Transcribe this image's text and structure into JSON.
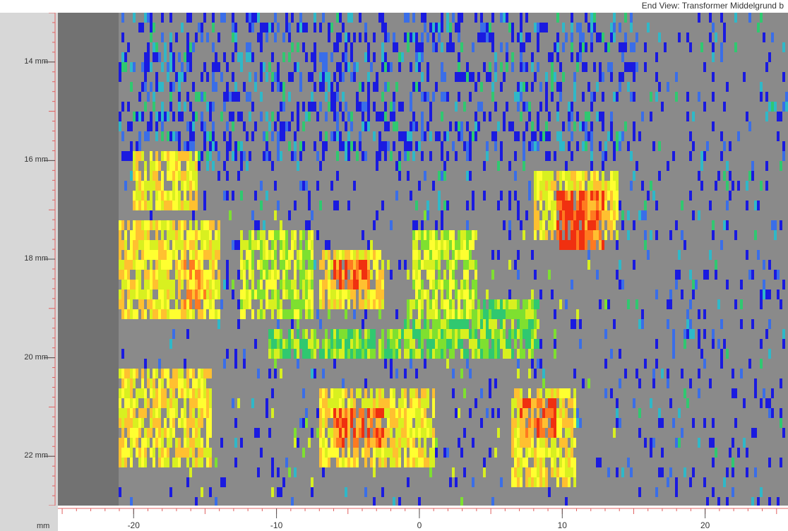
{
  "view": {
    "title": "End View: Transformer Middelgrund b",
    "unit_label": "mm"
  },
  "y_axis": {
    "ticks": [
      "14 mm",
      "16 mm",
      "18 mm",
      "20 mm",
      "22 mm"
    ],
    "tick_values": [
      14,
      16,
      18,
      20,
      22
    ],
    "range": [
      13.0,
      23.0
    ]
  },
  "x_axis": {
    "ticks": [
      "-20",
      "-10",
      "0",
      "10",
      "20"
    ],
    "tick_values": [
      -20,
      -10,
      0,
      10,
      20
    ],
    "range": [
      -25.3,
      25.8
    ]
  },
  "colors": {
    "background": "#8a8a8a",
    "dead_zone": "#727272",
    "scale": [
      "#1a1ae0",
      "#3a6ee8",
      "#2fb8c8",
      "#30c870",
      "#7ee030",
      "#d8f020",
      "#ffff30",
      "#ffc030",
      "#ff7a20",
      "#f03010"
    ],
    "ruler_red": "#e06060"
  },
  "hot_regions": [
    {
      "x": [
        -20.0,
        -15.5
      ],
      "y": [
        15.8,
        17.0
      ],
      "level": 6
    },
    {
      "x": [
        -21.0,
        -14.0
      ],
      "y": [
        17.3,
        19.2
      ],
      "level": 6
    },
    {
      "x": [
        -16.5,
        -15.0
      ],
      "y": [
        18.0,
        19.0
      ],
      "level": 7
    },
    {
      "x": [
        -21.0,
        -14.5
      ],
      "y": [
        20.3,
        22.3
      ],
      "level": 6
    },
    {
      "x": [
        -12.5,
        -7.5
      ],
      "y": [
        17.4,
        19.3
      ],
      "level": 5
    },
    {
      "x": [
        -7.0,
        -2.5
      ],
      "y": [
        17.8,
        19.0
      ],
      "level": 6
    },
    {
      "x": [
        -6.0,
        -3.5
      ],
      "y": [
        18.0,
        18.7
      ],
      "level": 8
    },
    {
      "x": [
        -7.0,
        1.0
      ],
      "y": [
        20.7,
        22.3
      ],
      "level": 6
    },
    {
      "x": [
        -6.0,
        -2.5
      ],
      "y": [
        21.0,
        21.8
      ],
      "level": 8
    },
    {
      "x": [
        -0.5,
        4.0
      ],
      "y": [
        17.4,
        19.2
      ],
      "level": 5
    },
    {
      "x": [
        6.5,
        11.0
      ],
      "y": [
        20.6,
        22.6
      ],
      "level": 6
    },
    {
      "x": [
        7.0,
        9.5
      ],
      "y": [
        20.8,
        21.6
      ],
      "level": 8
    },
    {
      "x": [
        8.0,
        14.0
      ],
      "y": [
        16.2,
        17.6
      ],
      "level": 6
    },
    {
      "x": [
        9.5,
        13.0
      ],
      "y": [
        16.6,
        17.8
      ],
      "level": 8
    },
    {
      "x": [
        9.5,
        11.5
      ],
      "y": [
        16.8,
        17.9
      ],
      "level": 9
    },
    {
      "x": [
        -10.5,
        8.5
      ],
      "y": [
        19.5,
        20.0
      ],
      "level": 4
    },
    {
      "x": [
        -1.0,
        8.5
      ],
      "y": [
        18.8,
        19.4
      ],
      "level": 4
    }
  ]
}
